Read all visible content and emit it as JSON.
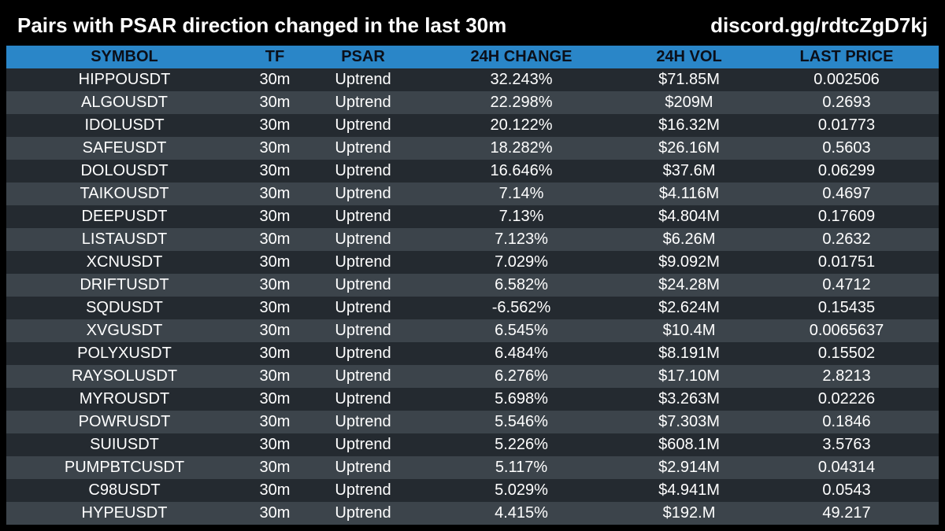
{
  "header": {
    "title": "Pairs with PSAR direction changed in the last 30m",
    "link": "discord.gg/rdtcZgD7kj"
  },
  "colors": {
    "background": "#000000",
    "header_row": "#2a86c8",
    "row_dark": "#242a30",
    "row_light": "#3c444b",
    "text": "#ffffff",
    "header_text": "#0b0f19"
  },
  "table": {
    "columns": [
      "SYMBOL",
      "TF",
      "PSAR",
      "24H CHANGE",
      "24H VOL",
      "LAST PRICE"
    ],
    "rows": [
      [
        "HIPPOUSDT",
        "30m",
        "Uptrend",
        "32.243%",
        "$71.85M",
        "0.002506"
      ],
      [
        "ALGOUSDT",
        "30m",
        "Uptrend",
        "22.298%",
        "$209M",
        "0.2693"
      ],
      [
        "IDOLUSDT",
        "30m",
        "Uptrend",
        "20.122%",
        "$16.32M",
        "0.01773"
      ],
      [
        "SAFEUSDT",
        "30m",
        "Uptrend",
        "18.282%",
        "$26.16M",
        "0.5603"
      ],
      [
        "DOLOUSDT",
        "30m",
        "Uptrend",
        "16.646%",
        "$37.6M",
        "0.06299"
      ],
      [
        "TAIKOUSDT",
        "30m",
        "Uptrend",
        "7.14%",
        "$4.116M",
        "0.4697"
      ],
      [
        "DEEPUSDT",
        "30m",
        "Uptrend",
        "7.13%",
        "$4.804M",
        "0.17609"
      ],
      [
        "LISTAUSDT",
        "30m",
        "Uptrend",
        "7.123%",
        "$6.26M",
        "0.2632"
      ],
      [
        "XCNUSDT",
        "30m",
        "Uptrend",
        "7.029%",
        "$9.092M",
        "0.01751"
      ],
      [
        "DRIFTUSDT",
        "30m",
        "Uptrend",
        "6.582%",
        "$24.28M",
        "0.4712"
      ],
      [
        "SQDUSDT",
        "30m",
        "Uptrend",
        "-6.562%",
        "$2.624M",
        "0.15435"
      ],
      [
        "XVGUSDT",
        "30m",
        "Uptrend",
        "6.545%",
        "$10.4M",
        "0.0065637"
      ],
      [
        "POLYXUSDT",
        "30m",
        "Uptrend",
        "6.484%",
        "$8.191M",
        "0.15502"
      ],
      [
        "RAYSOLUSDT",
        "30m",
        "Uptrend",
        "6.276%",
        "$17.10M",
        "2.8213"
      ],
      [
        "MYROUSDT",
        "30m",
        "Uptrend",
        "5.698%",
        "$3.263M",
        "0.02226"
      ],
      [
        "POWRUSDT",
        "30m",
        "Uptrend",
        "5.546%",
        "$7.303M",
        "0.1846"
      ],
      [
        "SUIUSDT",
        "30m",
        "Uptrend",
        "5.226%",
        "$608.1M",
        "3.5763"
      ],
      [
        "PUMPBTCUSDT",
        "30m",
        "Uptrend",
        "5.117%",
        "$2.914M",
        "0.04314"
      ],
      [
        "C98USDT",
        "30m",
        "Uptrend",
        "5.029%",
        "$4.941M",
        "0.0543"
      ],
      [
        "HYPEUSDT",
        "30m",
        "Uptrend",
        "4.415%",
        "$192.M",
        "49.217"
      ]
    ]
  }
}
